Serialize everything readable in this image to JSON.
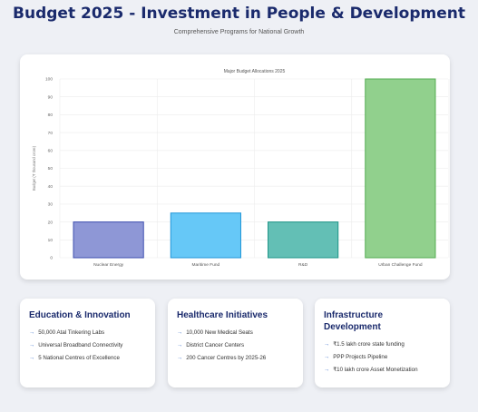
{
  "header": {
    "title": "Budget 2025 - Investment in People & Development",
    "subtitle": "Comprehensive Programs for National Growth"
  },
  "colors": {
    "title": "#1a2a6c",
    "bar_fills": [
      "#8e97d6",
      "#66c8f7",
      "#63bfb5",
      "#91d08d"
    ],
    "bar_strokes": [
      "#3f4fb0",
      "#2196d8",
      "#1e9588",
      "#54ad52"
    ],
    "bullet_arrow": "#4a7bd0"
  },
  "chart_data": {
    "type": "bar",
    "title": "Major Budget Allocations 2025",
    "xlabel": "",
    "ylabel": "Budget (₹ thousand crore)",
    "categories": [
      "Nuclear Energy",
      "Maritime Fund",
      "R&D",
      "Urban Challenge Fund"
    ],
    "values": [
      20,
      25,
      20,
      100
    ],
    "ylim": [
      0,
      100
    ],
    "yticks": [
      0,
      10,
      20,
      30,
      40,
      50,
      60,
      70,
      80,
      90,
      100
    ],
    "grid": true,
    "legend": "none"
  },
  "cards": [
    {
      "title": "Education & Innovation",
      "items": [
        "50,000 Atal Tinkering Labs",
        "Universal Broadband Connectivity",
        "5 National Centres of Excellence"
      ]
    },
    {
      "title": "Healthcare Initiatives",
      "items": [
        "10,000 New Medical Seats",
        "District Cancer Centers",
        "200 Cancer Centres by 2025-26"
      ]
    },
    {
      "title": "Infrastructure Development",
      "items": [
        "₹1.5 lakh crore state funding",
        "PPP Projects Pipeline",
        "₹10 lakh crore Asset Monetization"
      ]
    }
  ],
  "bullet_glyph": "→"
}
